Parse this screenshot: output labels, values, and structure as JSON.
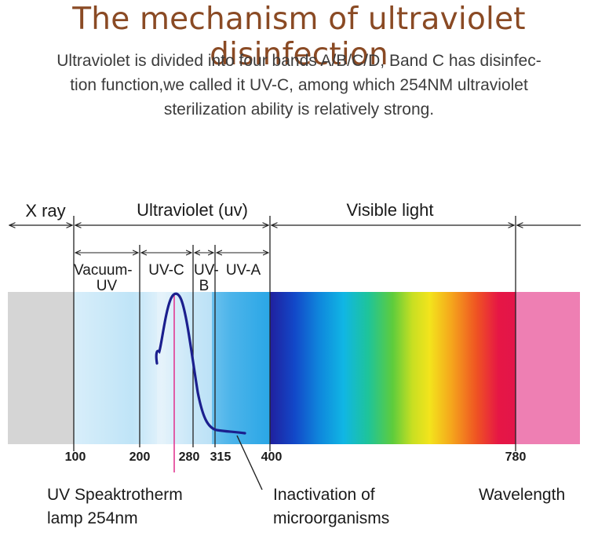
{
  "title": "The mechanism of ultraviolet disinfection",
  "intro": {
    "line1": "Ultraviolet is divided into four bands A/B/C/D, Band C has disinfec-",
    "line2": "tion function,we called it UV-C, among which  254NM ultraviolet",
    "line3": "sterilization ability is relatively strong."
  },
  "diagram": {
    "regions": {
      "xray": "X ray",
      "ultraviolet": "Ultraviolet (uv)",
      "visible": "Visible light"
    },
    "bands": {
      "vacuum_line1": "Vacuum-",
      "vacuum_line2": "UV",
      "uvc": "UV-C",
      "uvb_line1": "UV-",
      "uvb_line2": "B",
      "uva": "UV-A"
    },
    "ticks": [
      "100",
      "200",
      "280",
      "315",
      "400",
      "780"
    ],
    "captions": {
      "lamp_line1": "UV Speaktrotherm",
      "lamp_line2": "lamp 254nm",
      "inactivation_line1": "Inactivation of",
      "inactivation_line2": "microorganisms",
      "wavelength": "Wavelength"
    },
    "colors": {
      "xray_band": "#d4d4d4",
      "visible_gradient": [
        "#1d1d9a",
        "#1060d8",
        "#10b4e6",
        "#18c48a",
        "#7ed23a",
        "#f2e81a",
        "#f5a21a",
        "#ef5320",
        "#e31446",
        "#ed7bb0"
      ],
      "curve": "#1b1f8e",
      "lamp_line": "#e23a92"
    }
  }
}
